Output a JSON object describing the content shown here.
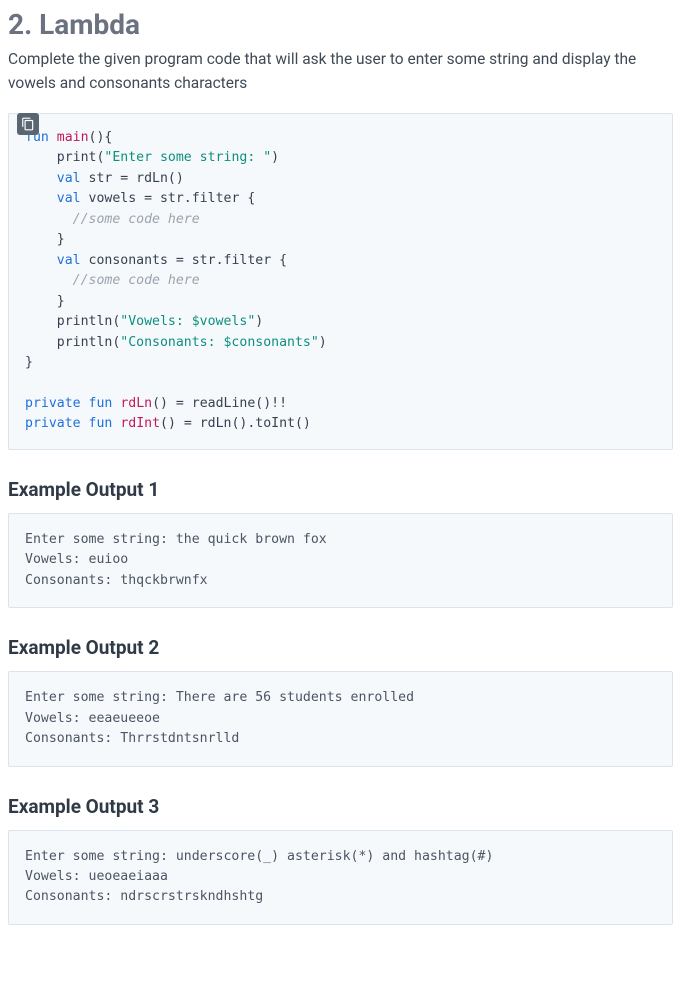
{
  "title": "2. Lambda",
  "description": "Complete the given program code that will ask the user to enter some string and display the vowels and consonants characters",
  "code": {
    "lines": [
      [
        [
          "kw",
          "fun"
        ],
        [
          "pln",
          " "
        ],
        [
          "fn",
          "main"
        ],
        [
          "pln",
          "(){"
        ]
      ],
      [
        [
          "pln",
          "    print("
        ],
        [
          "str",
          "\"Enter some string: \""
        ],
        [
          "pln",
          ")"
        ]
      ],
      [
        [
          "pln",
          "    "
        ],
        [
          "kw",
          "val"
        ],
        [
          "pln",
          " str = rdLn()"
        ]
      ],
      [
        [
          "pln",
          "    "
        ],
        [
          "kw",
          "val"
        ],
        [
          "pln",
          " vowels = str.filter {"
        ]
      ],
      [
        [
          "pln",
          "      "
        ],
        [
          "cm",
          "//some code here"
        ]
      ],
      [
        [
          "pln",
          "    }"
        ]
      ],
      [
        [
          "pln",
          "    "
        ],
        [
          "kw",
          "val"
        ],
        [
          "pln",
          " consonants = str.filter {"
        ]
      ],
      [
        [
          "pln",
          "      "
        ],
        [
          "cm",
          "//some code here"
        ]
      ],
      [
        [
          "pln",
          "    }"
        ]
      ],
      [
        [
          "pln",
          "    println("
        ],
        [
          "str",
          "\"Vowels: $vowels\""
        ],
        [
          "pln",
          ")"
        ]
      ],
      [
        [
          "pln",
          "    println("
        ],
        [
          "str",
          "\"Consonants: $consonants\""
        ],
        [
          "pln",
          ")"
        ]
      ],
      [
        [
          "pln",
          "}"
        ]
      ],
      [
        [
          "pln",
          ""
        ]
      ],
      [
        [
          "kw",
          "private"
        ],
        [
          "pln",
          " "
        ],
        [
          "kw",
          "fun"
        ],
        [
          "pln",
          " "
        ],
        [
          "fn",
          "rdLn"
        ],
        [
          "pln",
          "() = readLine()!!"
        ]
      ],
      [
        [
          "kw",
          "private"
        ],
        [
          "pln",
          " "
        ],
        [
          "kw",
          "fun"
        ],
        [
          "pln",
          " "
        ],
        [
          "fn",
          "rdInt"
        ],
        [
          "pln",
          "() = rdLn().toInt()"
        ]
      ]
    ]
  },
  "examples": [
    {
      "heading": "Example Output 1",
      "text": "Enter some string: the quick brown fox\nVowels: euioo\nConsonants: thqckbrwnfx"
    },
    {
      "heading": "Example Output 2",
      "text": "Enter some string: There are 56 students enrolled\nVowels: eeaeueeoe\nConsonants: Thrrstdntsnrlld"
    },
    {
      "heading": "Example Output 3",
      "text": "Enter some string: underscore(_) asterisk(*) and hashtag(#)\nVowels: ueoeaeiaaa\nConsonants: ndrscrstrskndhshtg"
    }
  ],
  "colors": {
    "keyword": "#1e6fdb",
    "function": "#c2185b",
    "string": "#0e8f7e",
    "comment": "#9aa3ad",
    "block_bg": "#f6f9fc",
    "block_border": "#dbe3ec",
    "title": "#6b7280",
    "body_text": "#3f4a56"
  }
}
